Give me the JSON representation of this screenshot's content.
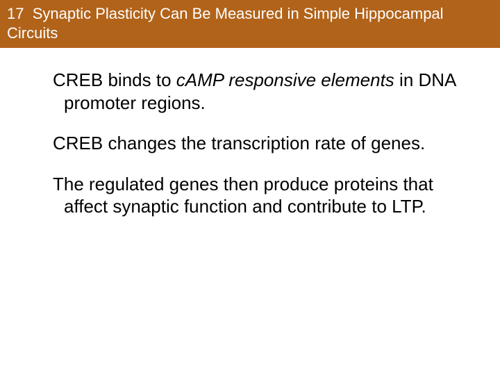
{
  "title": {
    "number": "17",
    "text": "Synaptic Plasticity Can Be Measured in Simple Hippocampal Circuits",
    "bg_color": "#b1631a",
    "text_color": "#ffffff",
    "font_size": 22
  },
  "body": {
    "font_size": 26,
    "text_color": "#000000",
    "paragraphs": [
      {
        "runs": [
          {
            "text": "CREB binds to ",
            "italic": false
          },
          {
            "text": "cAMP responsive elements",
            "italic": true
          },
          {
            "text": " in DNA promoter regions.",
            "italic": false
          }
        ]
      },
      {
        "runs": [
          {
            "text": "CREB changes the transcription rate of genes.",
            "italic": false
          }
        ]
      },
      {
        "runs": [
          {
            "text": "The regulated genes then produce proteins that affect synaptic function and contribute to LTP.",
            "italic": false
          }
        ]
      }
    ]
  }
}
